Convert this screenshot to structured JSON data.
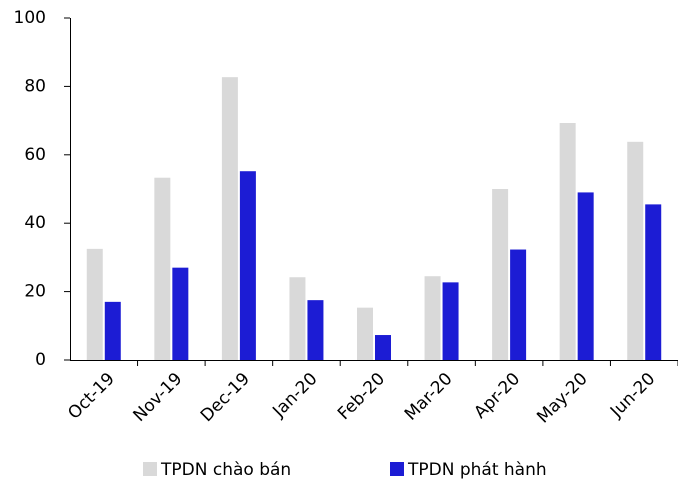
{
  "chart_data": {
    "type": "bar",
    "categories": [
      "Oct-19",
      "Nov-19",
      "Dec-19",
      "Jan-20",
      "Feb-20",
      "Mar-20",
      "Apr-20",
      "May-20",
      "Jun-20"
    ],
    "series": [
      {
        "name": "TPDN chào bán",
        "color": "#d9d9d9",
        "values": [
          32.5,
          53.3,
          82.7,
          24.2,
          15.3,
          24.5,
          50,
          69.3,
          63.8
        ]
      },
      {
        "name": "TPDN phát hành",
        "color": "#1c1cd4",
        "values": [
          17,
          27,
          55.2,
          17.5,
          7.3,
          22.7,
          32.3,
          49,
          45.5
        ]
      }
    ],
    "ylim": [
      0,
      100
    ],
    "yticks": [
      0,
      20,
      40,
      60,
      80,
      100
    ],
    "grid": false,
    "legend": "bottom"
  }
}
